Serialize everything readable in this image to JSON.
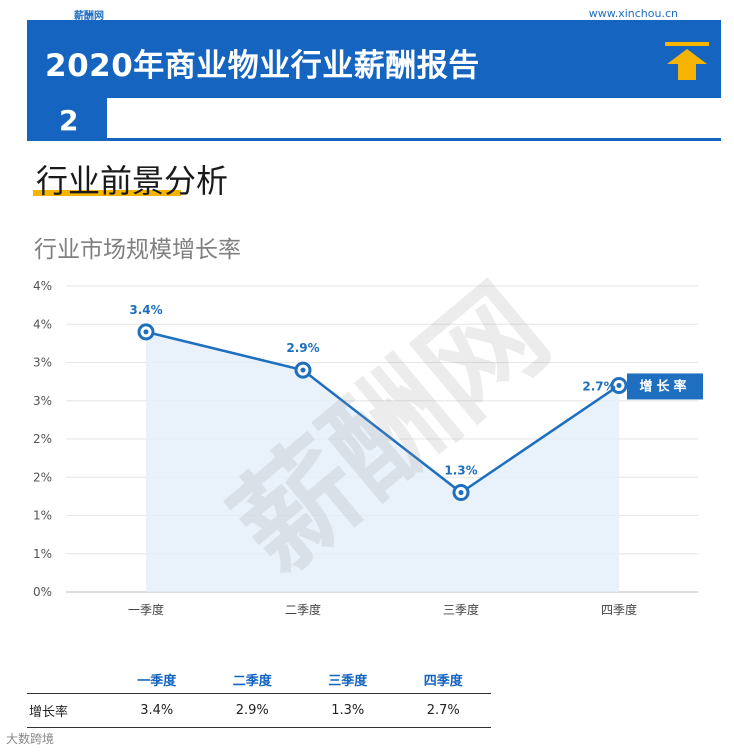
{
  "header": {
    "site_name": "薪酬网",
    "site_url": "www.xinchou.cn",
    "report_title": "2020年商业物业行业薪酬报告",
    "page_number": "2",
    "brand_color": "#1565c0",
    "accent_color": "#f4b400",
    "icon": "up-arrow-icon"
  },
  "section": {
    "title": "行业前景分析"
  },
  "chart_data": {
    "type": "line",
    "title": "行业市场规模增长率",
    "categories": [
      "一季度",
      "二季度",
      "三季度",
      "四季度"
    ],
    "series": [
      {
        "name": "增长率",
        "values": [
          3.4,
          2.9,
          1.3,
          2.7
        ],
        "labels": [
          "3.4%",
          "2.9%",
          "1.3%",
          "2.7%"
        ]
      }
    ],
    "y_ticks": [
      "0%",
      "1%",
      "1%",
      "2%",
      "2%",
      "3%",
      "3%",
      "4%",
      "4%"
    ],
    "ylim": [
      0,
      4
    ],
    "grid": true,
    "legend_position": "right",
    "line_color": "#1f6fc0",
    "area_color": "#e3eefa"
  },
  "table": {
    "row_label": "增长率",
    "headers": [
      "一季度",
      "二季度",
      "三季度",
      "四季度"
    ],
    "values": [
      "3.4%",
      "2.9%",
      "1.3%",
      "2.7%"
    ]
  },
  "watermark": {
    "text": "薪酬网"
  },
  "footer": {
    "text": "大数跨境"
  }
}
